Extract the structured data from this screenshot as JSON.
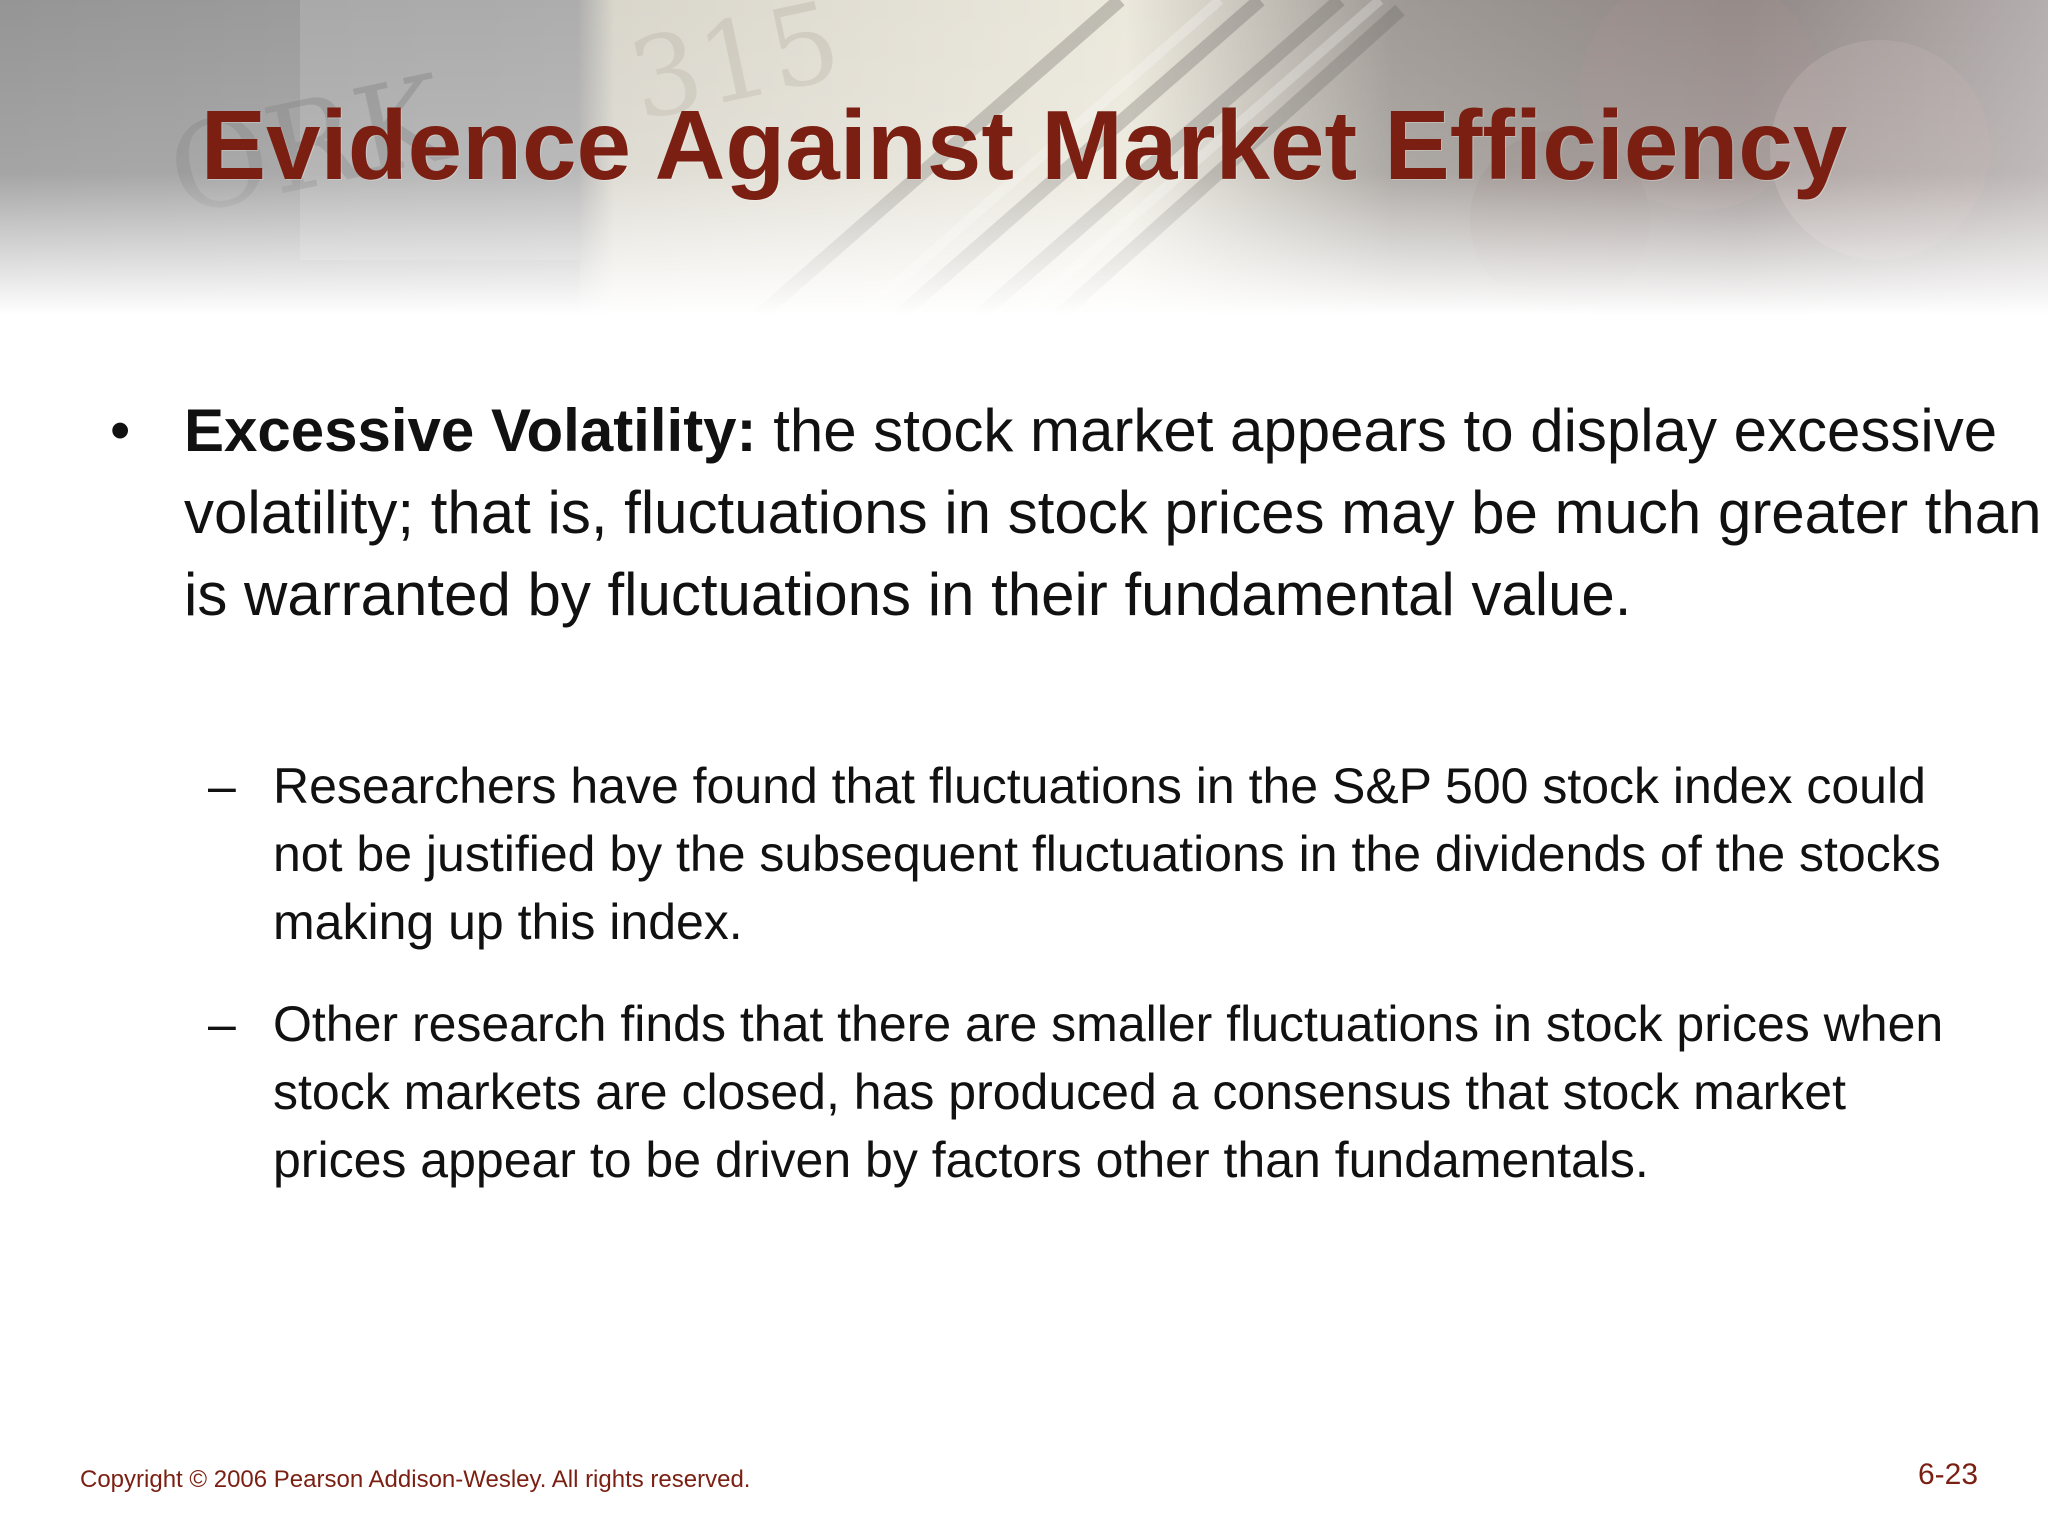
{
  "slide": {
    "title": "Evidence Against Market Efficiency",
    "bullet": {
      "marker": "•",
      "term": "Excessive Volatility:",
      "text": " the stock market appears to display excessive volatility; that is, fluctuations in stock prices may be much greater than is warranted by fluctuations in their fundamental value."
    },
    "sub_items": [
      {
        "marker": "–",
        "text": "Researchers have found that fluctuations in the S&P 500 stock index could not be justified by the subsequent fluctuations in the dividends of the stocks making up this index."
      },
      {
        "marker": "–",
        "text": "Other research finds that there are smaller fluctuations in stock prices when stock markets are closed, has produced a consensus that stock market prices appear to be driven by factors other than fundamentals."
      }
    ],
    "footer": {
      "copyright": "Copyright © 2006 Pearson Addison-Wesley. All rights reserved.",
      "page_number": "6-23"
    },
    "colors": {
      "title": "#7a1f12",
      "body_text": "#111111",
      "footer": "#7a1f12"
    }
  }
}
